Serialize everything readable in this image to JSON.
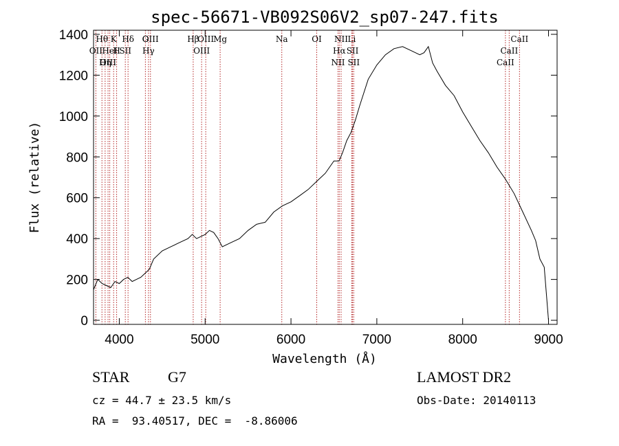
{
  "chart_data": {
    "type": "line",
    "title": "spec-56671-VB092S06V2_sp07-247.fits",
    "xlabel": "Wavelength (Å)",
    "ylabel": "Flux (relative)",
    "xlim": [
      3700,
      9100
    ],
    "ylim": [
      -20,
      1420
    ],
    "x_ticks": [
      4000,
      5000,
      6000,
      7000,
      8000,
      9000
    ],
    "y_ticks": [
      0,
      200,
      400,
      600,
      800,
      1000,
      1200,
      1400
    ],
    "grid": false,
    "series": [
      {
        "x": [
          3700,
          3750,
          3800,
          3850,
          3900,
          3950,
          4000,
          4050,
          4100,
          4150,
          4200,
          4250,
          4300,
          4350,
          4400,
          4500,
          4600,
          4700,
          4800,
          4850,
          4900,
          5000,
          5050,
          5100,
          5150,
          5200,
          5300,
          5400,
          5500,
          5600,
          5700,
          5800,
          5900,
          6000,
          6100,
          6200,
          6300,
          6400,
          6500,
          6560,
          6600,
          6650,
          6700,
          6750,
          6800,
          6900,
          7000,
          7100,
          7200,
          7300,
          7400,
          7500,
          7550,
          7600,
          7650,
          7700,
          7800,
          7900,
          8000,
          8100,
          8200,
          8300,
          8400,
          8500,
          8600,
          8700,
          8800,
          8850,
          8900,
          8950,
          9000
        ],
        "y": [
          150,
          200,
          180,
          170,
          160,
          190,
          180,
          200,
          210,
          190,
          200,
          210,
          230,
          250,
          300,
          340,
          360,
          380,
          400,
          420,
          400,
          420,
          440,
          430,
          400,
          360,
          380,
          400,
          440,
          470,
          480,
          530,
          560,
          580,
          610,
          640,
          680,
          720,
          780,
          780,
          820,
          880,
          920,
          980,
          1050,
          1180,
          1250,
          1300,
          1330,
          1340,
          1320,
          1300,
          1310,
          1340,
          1260,
          1220,
          1150,
          1100,
          1020,
          950,
          880,
          820,
          750,
          690,
          620,
          530,
          440,
          390,
          300,
          260,
          0
        ]
      }
    ],
    "spectral_lines": [
      {
        "name": "Hθ",
        "x": 3798
      },
      {
        "name": "OII",
        "x": 3727
      },
      {
        "name": "OIII",
        "x": 3869
      },
      {
        "name": "HeI",
        "x": 3889
      },
      {
        "name": "K",
        "x": 3934
      },
      {
        "name": "Hη",
        "x": 3835
      },
      {
        "name": "SII",
        "x": 4070
      },
      {
        "name": "H",
        "x": 3969
      },
      {
        "name": "Hδ",
        "x": 4102
      },
      {
        "name": "OIII",
        "x": 4363
      },
      {
        "name": "Hγ",
        "x": 4340
      },
      {
        "name": "G",
        "x": 4304
      },
      {
        "name": "OIII",
        "x": 5007
      },
      {
        "name": "OIII",
        "x": 4959
      },
      {
        "name": "Hβ",
        "x": 4861
      },
      {
        "name": "Mg",
        "x": 5175
      },
      {
        "name": "Na",
        "x": 5893
      },
      {
        "name": "OI",
        "x": 6300
      },
      {
        "name": "NII",
        "x": 6584
      },
      {
        "name": "Hα",
        "x": 6563
      },
      {
        "name": "NII",
        "x": 6548
      },
      {
        "name": "SII",
        "x": 6717
      },
      {
        "name": "SII",
        "x": 6731
      },
      {
        "name": "Li",
        "x": 6708
      },
      {
        "name": "CaII",
        "x": 8662
      },
      {
        "name": "CaII",
        "x": 8542
      },
      {
        "name": "CaII",
        "x": 8498
      }
    ]
  },
  "info": {
    "object_class": "STAR",
    "subclass": "G7",
    "survey": "LAMOST DR2",
    "redshift_text": "cz = 44.7 ± 23.5 km/s",
    "obs_date_text": "Obs-Date: 20140113",
    "coords_text": "RA =  93.40517, DEC =  -8.86006"
  }
}
